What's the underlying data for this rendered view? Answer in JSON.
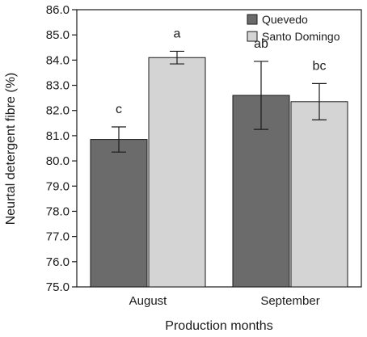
{
  "chart_data": {
    "type": "bar",
    "categories": [
      "August",
      "September"
    ],
    "series": [
      {
        "name": "Quevedo",
        "color": "#6b6b6b",
        "values": [
          80.85,
          82.6
        ],
        "errors": [
          0.5,
          1.35
        ],
        "letters": [
          "c",
          "ab"
        ]
      },
      {
        "name": "Santo Domingo",
        "color": "#d4d4d4",
        "values": [
          84.1,
          82.35
        ],
        "errors": [
          0.25,
          0.72
        ],
        "letters": [
          "a",
          "bc"
        ]
      }
    ],
    "xlabel": "Production months",
    "ylabel": "Neurtal detergent fibre (%)",
    "ylim": [
      75.0,
      86.0
    ],
    "yticks": [
      "75.0",
      "76.0",
      "77.0",
      "78.0",
      "79.0",
      "80.0",
      "81.0",
      "82.0",
      "83.0",
      "84.0",
      "85.0",
      "86.0"
    ],
    "legend_position": "top-right",
    "grid": false
  }
}
